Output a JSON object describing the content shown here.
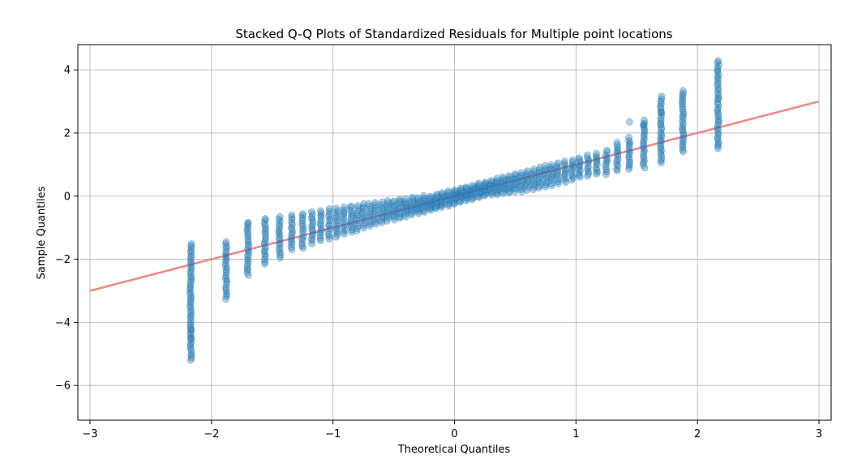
{
  "colors": {
    "points": "#1f77b4",
    "reference_line": "#f08080",
    "grid": "#b0b0b0",
    "axes": "#000000"
  },
  "chart_data": {
    "type": "scatter",
    "title": "Stacked Q-Q Plots of Standardized Residuals for Multiple point locations",
    "xlabel": "Theoretical Quantiles",
    "ylabel": "Sample Quantiles",
    "xlim": [
      -3.1,
      3.1
    ],
    "ylim": [
      -7.1,
      4.8
    ],
    "xticks": [
      -3,
      -2,
      -1,
      0,
      1,
      2,
      3
    ],
    "yticks": [
      -6,
      -4,
      -2,
      0,
      2,
      4
    ],
    "xtick_labels": [
      "−3",
      "−2",
      "−1",
      "0",
      "1",
      "2",
      "3"
    ],
    "ytick_labels": [
      "−6",
      "−4",
      "−2",
      "0",
      "2",
      "4"
    ],
    "grid": true,
    "reference_line": {
      "x": [
        -3,
        3
      ],
      "y": [
        -3,
        3
      ]
    },
    "point_alpha": 0.35,
    "columns": [
      {
        "x": -2.17,
        "y_min": -5.2,
        "y_max": -1.5
      },
      {
        "x": -1.88,
        "y_min": -3.25,
        "y_max": -1.45
      },
      {
        "x": -1.7,
        "y_min": -2.5,
        "y_max": -0.85
      },
      {
        "x": -1.56,
        "y_min": -2.15,
        "y_max": -0.7
      },
      {
        "x": -1.44,
        "y_min": -1.95,
        "y_max": -0.65
      },
      {
        "x": -1.34,
        "y_min": -1.7,
        "y_max": -0.6
      },
      {
        "x": -1.25,
        "y_min": -1.65,
        "y_max": -0.55
      },
      {
        "x": -1.17,
        "y_min": -1.5,
        "y_max": -0.5
      },
      {
        "x": -1.1,
        "y_min": -1.4,
        "y_max": -0.45
      },
      {
        "x": -1.03,
        "y_min": -1.35,
        "y_max": -0.4
      },
      {
        "x": -0.97,
        "y_min": -1.3,
        "y_max": -0.4
      },
      {
        "x": -0.91,
        "y_min": -1.2,
        "y_max": -0.35
      },
      {
        "x": -0.85,
        "y_min": -1.15,
        "y_max": -0.3
      },
      {
        "x": -0.8,
        "y_min": -1.1,
        "y_max": -0.3
      },
      {
        "x": -0.75,
        "y_min": -1.0,
        "y_max": -0.25
      },
      {
        "x": -0.7,
        "y_min": -0.95,
        "y_max": -0.25
      },
      {
        "x": -0.65,
        "y_min": -0.9,
        "y_max": -0.2
      },
      {
        "x": -0.6,
        "y_min": -0.85,
        "y_max": -0.2
      },
      {
        "x": -0.55,
        "y_min": -0.8,
        "y_max": -0.15
      },
      {
        "x": -0.5,
        "y_min": -0.75,
        "y_max": -0.15
      },
      {
        "x": -0.45,
        "y_min": -0.7,
        "y_max": -0.1
      },
      {
        "x": -0.4,
        "y_min": -0.65,
        "y_max": -0.1
      },
      {
        "x": -0.35,
        "y_min": -0.6,
        "y_max": -0.05
      },
      {
        "x": -0.3,
        "y_min": -0.55,
        "y_max": -0.05
      },
      {
        "x": -0.25,
        "y_min": -0.5,
        "y_max": 0.0
      },
      {
        "x": -0.2,
        "y_min": -0.45,
        "y_max": 0.0
      },
      {
        "x": -0.15,
        "y_min": -0.4,
        "y_max": 0.05
      },
      {
        "x": -0.1,
        "y_min": -0.35,
        "y_max": 0.1
      },
      {
        "x": -0.05,
        "y_min": -0.3,
        "y_max": 0.15
      },
      {
        "x": 0.0,
        "y_min": -0.25,
        "y_max": 0.2
      },
      {
        "x": 0.05,
        "y_min": -0.2,
        "y_max": 0.25
      },
      {
        "x": 0.1,
        "y_min": -0.15,
        "y_max": 0.3
      },
      {
        "x": 0.15,
        "y_min": -0.1,
        "y_max": 0.35
      },
      {
        "x": 0.2,
        "y_min": -0.05,
        "y_max": 0.4
      },
      {
        "x": 0.25,
        "y_min": 0.0,
        "y_max": 0.45
      },
      {
        "x": 0.3,
        "y_min": 0.05,
        "y_max": 0.5
      },
      {
        "x": 0.35,
        "y_min": 0.05,
        "y_max": 0.55
      },
      {
        "x": 0.4,
        "y_min": 0.1,
        "y_max": 0.6
      },
      {
        "x": 0.45,
        "y_min": 0.1,
        "y_max": 0.65
      },
      {
        "x": 0.5,
        "y_min": 0.15,
        "y_max": 0.7
      },
      {
        "x": 0.55,
        "y_min": 0.15,
        "y_max": 0.75
      },
      {
        "x": 0.6,
        "y_min": 0.2,
        "y_max": 0.8
      },
      {
        "x": 0.65,
        "y_min": 0.2,
        "y_max": 0.85
      },
      {
        "x": 0.7,
        "y_min": 0.25,
        "y_max": 0.9
      },
      {
        "x": 0.75,
        "y_min": 0.3,
        "y_max": 0.95
      },
      {
        "x": 0.8,
        "y_min": 0.35,
        "y_max": 1.0
      },
      {
        "x": 0.85,
        "y_min": 0.4,
        "y_max": 1.05
      },
      {
        "x": 0.91,
        "y_min": 0.45,
        "y_max": 1.1
      },
      {
        "x": 0.97,
        "y_min": 0.5,
        "y_max": 1.15
      },
      {
        "x": 1.03,
        "y_min": 0.6,
        "y_max": 1.2
      },
      {
        "x": 1.1,
        "y_min": 0.65,
        "y_max": 1.3
      },
      {
        "x": 1.17,
        "y_min": 0.7,
        "y_max": 1.35
      },
      {
        "x": 1.25,
        "y_min": 0.7,
        "y_max": 1.45
      },
      {
        "x": 1.34,
        "y_min": 0.8,
        "y_max": 1.7
      },
      {
        "x": 1.44,
        "y_min": 0.85,
        "y_max": 1.85
      },
      {
        "x": 1.56,
        "y_min": 0.9,
        "y_max": 2.4
      },
      {
        "x": 1.7,
        "y_min": 1.05,
        "y_max": 3.15
      },
      {
        "x": 1.88,
        "y_min": 1.4,
        "y_max": 3.35
      },
      {
        "x": 2.17,
        "y_min": 1.5,
        "y_max": 4.3
      }
    ],
    "outliers": [
      {
        "x": 1.44,
        "y": 2.35
      },
      {
        "x": 1.56,
        "y": 2.25
      },
      {
        "x": 1.7,
        "y": 2.65
      },
      {
        "x": -1.7,
        "y": -0.85
      },
      {
        "x": -2.17,
        "y": -4.5
      },
      {
        "x": -2.17,
        "y": -4.25
      }
    ]
  }
}
